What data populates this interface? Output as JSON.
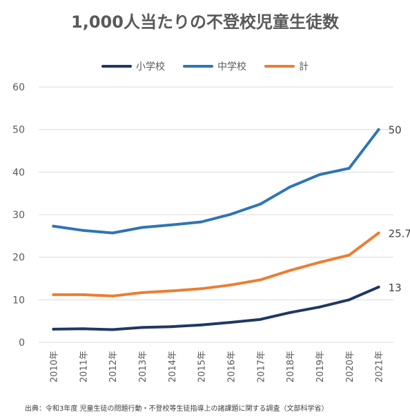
{
  "chart_data": {
    "type": "line",
    "title": "1,000人当たりの不登校児童生徒数",
    "categories": [
      "2010年",
      "2011年",
      "2012年",
      "2013年",
      "2014年",
      "2015年",
      "2016年",
      "2017年",
      "2018年",
      "2019年",
      "2020年",
      "2021年"
    ],
    "series": [
      {
        "name": "小学校",
        "color": "#1f3864",
        "values": [
          3.1,
          3.2,
          3.0,
          3.5,
          3.7,
          4.1,
          4.7,
          5.4,
          7.0,
          8.3,
          10.0,
          13.0
        ],
        "end_label": "13"
      },
      {
        "name": "中学校",
        "color": "#2e75b6",
        "values": [
          27.3,
          26.3,
          25.7,
          27.0,
          27.6,
          28.3,
          30.1,
          32.5,
          36.5,
          39.4,
          40.9,
          50.0
        ],
        "end_label": "50"
      },
      {
        "name": "計",
        "color": "#ed7d31",
        "values": [
          11.2,
          11.2,
          10.9,
          11.7,
          12.1,
          12.6,
          13.5,
          14.7,
          16.9,
          18.8,
          20.5,
          25.7
        ],
        "end_label": "25.7"
      }
    ],
    "ylim": [
      0,
      60
    ],
    "yticks": [
      "0",
      "10",
      "20",
      "30",
      "40",
      "50",
      "60"
    ],
    "grid": true,
    "legend_position": "top-center"
  },
  "source_text": "出典：令和3年度 児童生徒の問題行動・不登校等生徒指導上の諸課題に関する調査（文部科学省）"
}
